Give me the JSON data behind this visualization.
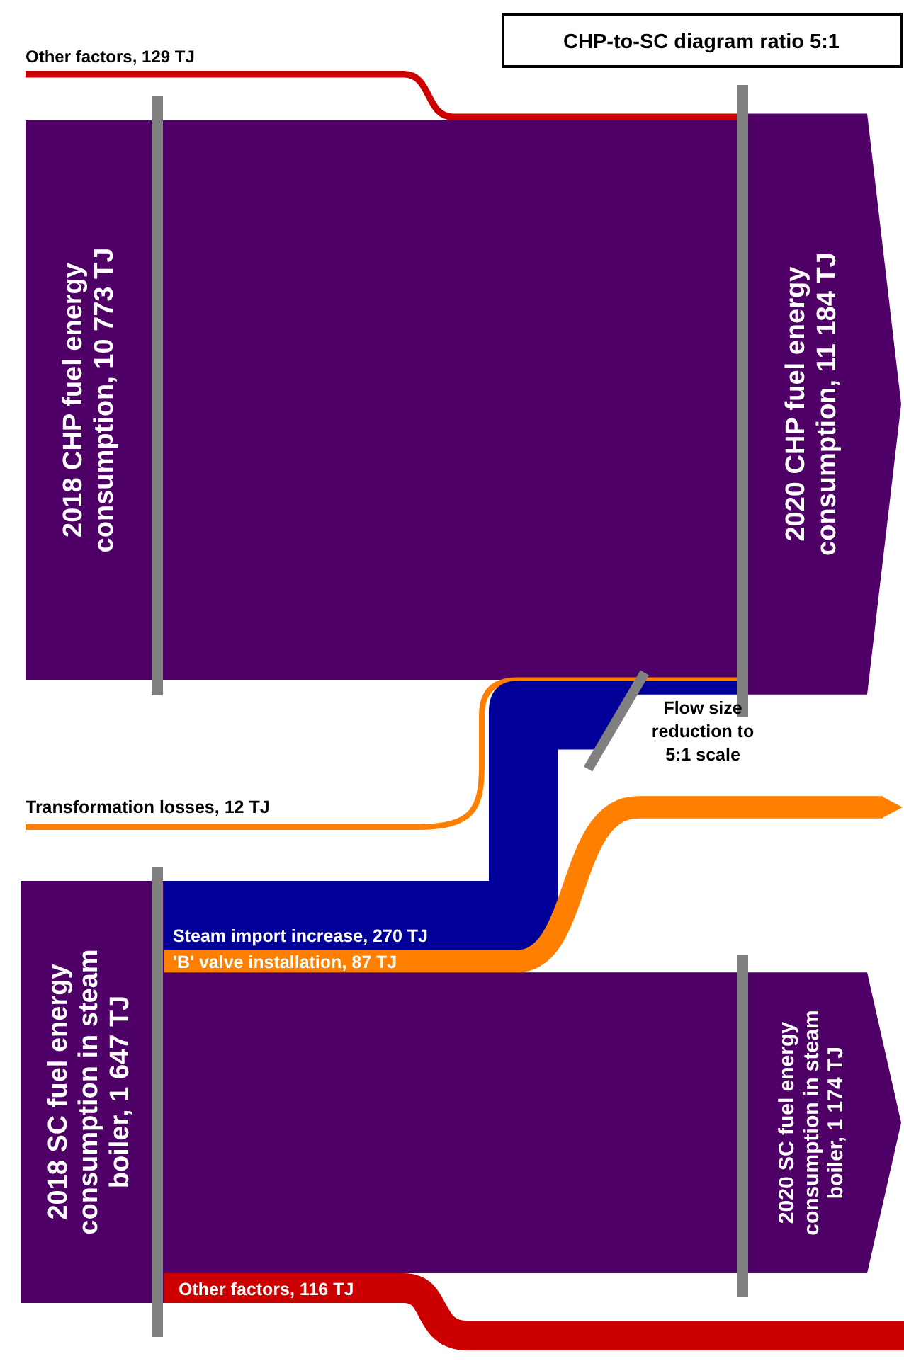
{
  "chart_data": {
    "type": "other",
    "title": "CHP-to-SC diagram ratio 5:1",
    "categories": [
      "2018 CHP fuel energy consumption",
      "Other factors",
      "2020 CHP fuel energy consumption",
      "Transformation losses",
      "2018 SC fuel energy consumption in steam boiler",
      "Steam import increase",
      "'B' valve installation",
      "Other factors",
      "2020 SC fuel energy consumption in steam boiler"
    ],
    "values": [
      10773,
      129,
      11184,
      12,
      1647,
      270,
      87,
      116,
      1174
    ],
    "value_labels": [
      ", 10 773 TJ",
      ", 129 TJ",
      ", 11 184 TJ",
      ", 12 TJ",
      ", 1 647 TJ",
      ", 270 TJ",
      ", 87 TJ",
      ", 116 TJ",
      ", 1 174 TJ"
    ],
    "colors": [
      "#4f0066",
      "#cc0000",
      "#4f0066",
      "#ff8000",
      "#4f0066",
      "#000099",
      "#ff8000",
      "#cc0000",
      "#4f0066"
    ],
    "annotations": [
      "Flow size reduction to 5:1 scale"
    ]
  }
}
